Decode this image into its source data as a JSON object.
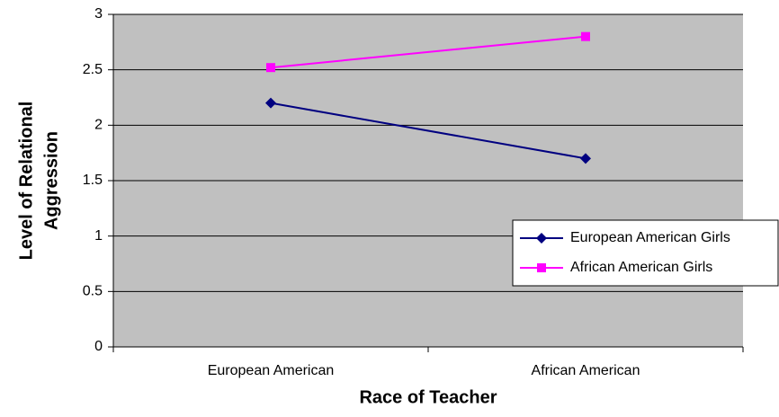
{
  "chart_data": {
    "type": "line",
    "xlabel": "Race of Teacher",
    "ylabel": [
      "Level of Relational",
      "Aggression"
    ],
    "categories": [
      "European American",
      "African American"
    ],
    "series": [
      {
        "name": "European American Girls",
        "color": "#000080",
        "marker": "diamond",
        "values": [
          2.2,
          1.7
        ]
      },
      {
        "name": "African American Girls",
        "color": "#ff00ff",
        "marker": "square",
        "values": [
          2.52,
          2.8
        ]
      }
    ],
    "ylim": [
      0,
      3
    ],
    "yticks": [
      0,
      0.5,
      1,
      1.5,
      2,
      2.5,
      3
    ],
    "grid": true,
    "legend": "right"
  }
}
